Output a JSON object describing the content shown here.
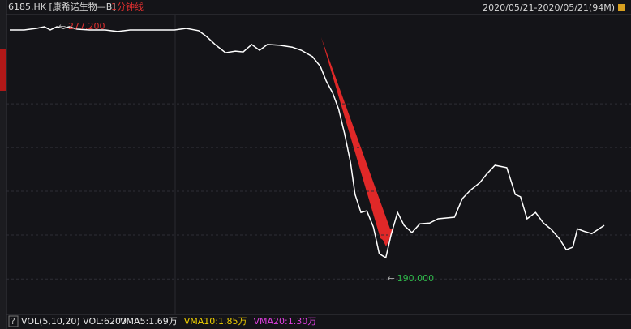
{
  "chart_data": {
    "type": "line",
    "title": "6185.HK [康希诺生物—B]",
    "subtitle": "1分钟线",
    "date_range": "2020/05/21-2020/05/21(94M)",
    "x": [
      0,
      2.2,
      4.1,
      5.3,
      6.2,
      7.2,
      8.2,
      9.1,
      10.3,
      12.2,
      14.6,
      16.5,
      18.4,
      20.8,
      23.3,
      25.2,
      27.0,
      28.9,
      30.1,
      31.4,
      33.0,
      34.5,
      35.7,
      37.0,
      38.2,
      39.4,
      41.3,
      43.2,
      44.6,
      46.3,
      47.5,
      48.4,
      49.4,
      50.3,
      51.2,
      52.1,
      52.8,
      53.7,
      54.6,
      55.6,
      56.5,
      57.5,
      58.3,
      59.3,
      60.3,
      61.5,
      62.7,
      64.2,
      65.5,
      68.0,
      69.2,
      70.4,
      71.9,
      72.9,
      74.2,
      76.0,
      77.3,
      78.1,
      79.1,
      80.4,
      81.6,
      82.8,
      84.1,
      85.1,
      86.1,
      86.8,
      87.8,
      89.0,
      90.9
    ],
    "values": [
      276.0,
      276.0,
      276.6,
      277.2,
      276.0,
      277.2,
      276.6,
      277.2,
      276.3,
      276.0,
      276.0,
      275.4,
      276.0,
      276.0,
      276.0,
      276.0,
      276.6,
      275.7,
      273.5,
      270.5,
      267.4,
      268.0,
      267.7,
      270.5,
      268.3,
      270.5,
      270.2,
      269.5,
      268.3,
      265.9,
      262.2,
      256.7,
      252.1,
      246.0,
      236.8,
      226.1,
      213.9,
      207.1,
      207.7,
      201.6,
      191.5,
      190.0,
      198.6,
      207.1,
      202.2,
      199.5,
      202.8,
      203.1,
      204.7,
      205.3,
      212.3,
      215.4,
      218.4,
      221.5,
      224.9,
      224.0,
      213.9,
      213.0,
      204.7,
      207.1,
      203.1,
      200.7,
      197.0,
      193.0,
      194.0,
      200.9,
      200.0,
      199.1,
      202.2
    ],
    "color": "#ffffff",
    "xlim": [
      0,
      94
    ],
    "ylim": [
      168.6,
      281.8
    ],
    "yticks": [
      248.1,
      231.6,
      215.1,
      198.6,
      182.0
    ],
    "grid": true,
    "annotations": [
      {
        "text": "277.200",
        "x": 7.2,
        "y": 277.2,
        "color": "#e03030"
      },
      {
        "text": "190.000",
        "x": 57.5,
        "y": 190.0,
        "color": "#2fb84a"
      }
    ],
    "volume_panel": {
      "label": "VOL(5,10,20) VOL:6200",
      "items": [
        {
          "text": "VMA5:1.69万",
          "color": "#e8e8e8"
        },
        {
          "text": "VMA10:1.85万",
          "color": "#f0d000"
        },
        {
          "text": "VMA20:1.30万",
          "color": "#e040e0"
        }
      ]
    }
  }
}
